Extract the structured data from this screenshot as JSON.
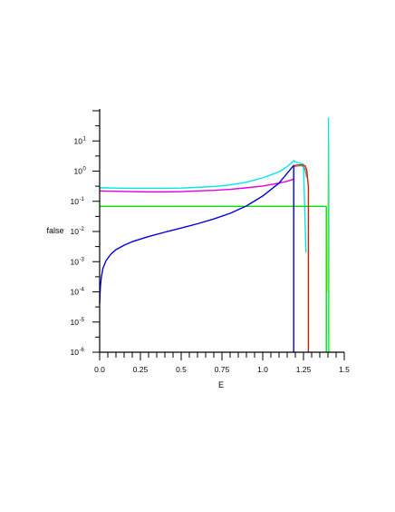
{
  "chart_data": {
    "type": "line",
    "title": "",
    "xlabel": "E",
    "ylabel": "false",
    "xlim": [
      0,
      1.5
    ],
    "ylim_exp": [
      -6,
      2
    ],
    "y_scale": "log",
    "grid": false,
    "x_ticks": [
      "0.0",
      "0.25",
      "0.5",
      "0.75",
      "1.0",
      "1.25",
      "1.5"
    ],
    "y_ticks": [
      {
        "base": "10",
        "exp": "1"
      },
      {
        "base": "10",
        "exp": "0"
      },
      {
        "base": "10",
        "exp": "-1"
      },
      {
        "base": "10",
        "exp": "-2"
      },
      {
        "base": "10",
        "exp": "-3"
      },
      {
        "base": "10",
        "exp": "-4"
      },
      {
        "base": "10",
        "exp": "-5"
      },
      {
        "base": "10",
        "exp": "-6"
      }
    ],
    "series": [
      {
        "color": "#00e5ee",
        "x": [
          0.0,
          0.1,
          0.2,
          0.3,
          0.4,
          0.5,
          0.6,
          0.7,
          0.8,
          0.9,
          1.0,
          1.05,
          1.1,
          1.15,
          1.19,
          1.2,
          1.25,
          1.265
        ],
        "y": [
          0.28,
          0.275,
          0.27,
          0.27,
          0.27,
          0.275,
          0.29,
          0.31,
          0.35,
          0.43,
          0.6,
          0.75,
          0.95,
          1.4,
          2.2,
          2.0,
          1.7,
          0.002
        ]
      },
      {
        "color": "#e100e1",
        "x": [
          0.0,
          0.1,
          0.2,
          0.3,
          0.4,
          0.5,
          0.6,
          0.7,
          0.8,
          0.9,
          1.0,
          1.1,
          1.15,
          1.18,
          1.19
        ],
        "y": [
          0.22,
          0.215,
          0.21,
          0.205,
          0.205,
          0.21,
          0.22,
          0.23,
          0.25,
          0.28,
          0.32,
          0.4,
          0.46,
          0.52,
          0.55
        ]
      },
      {
        "color": "#00e000",
        "x": [
          0.0,
          1.39
        ],
        "y": [
          0.068,
          0.068
        ]
      },
      {
        "color": "#0000dd",
        "x": [
          0.0,
          0.002,
          0.005,
          0.01,
          0.02,
          0.04,
          0.07,
          0.1,
          0.15,
          0.2,
          0.3,
          0.4,
          0.5,
          0.6,
          0.7,
          0.8,
          0.9,
          1.0,
          1.1,
          1.19,
          1.19
        ],
        "y": [
          4e-05,
          8e-05,
          0.00016,
          0.0003,
          0.0006,
          0.0011,
          0.0018,
          0.0025,
          0.0035,
          0.0046,
          0.0068,
          0.0095,
          0.013,
          0.018,
          0.026,
          0.04,
          0.07,
          0.15,
          0.4,
          1.55,
          1e-06
        ]
      },
      {
        "color": "#cc2200",
        "x": [
          1.19,
          1.2,
          1.22,
          1.24,
          1.26,
          1.27,
          1.28,
          1.28
        ],
        "y": [
          1.3,
          1.55,
          1.6,
          1.6,
          1.5,
          1.1,
          0.3,
          1e-06
        ]
      },
      {
        "color": "#888888",
        "x": [
          1.2,
          1.22,
          1.24,
          1.25,
          1.26,
          1.27
        ],
        "y": [
          1.45,
          1.5,
          1.5,
          1.4,
          1.1,
          0.6
        ]
      },
      {
        "color": "#e6e600",
        "x": [
          1.395,
          1.4,
          1.402,
          1.405,
          1.408,
          1.41
        ],
        "y": [
          0.0001,
          0.01,
          1.0,
          10.0,
          0.001,
          1e-06
        ]
      }
    ],
    "vertical_lines": [
      {
        "color": "#00e5ee",
        "x": 1.403,
        "y_top": 60.0
      },
      {
        "color": "#00e000",
        "x": 1.39,
        "y_top": 0.068
      }
    ]
  }
}
